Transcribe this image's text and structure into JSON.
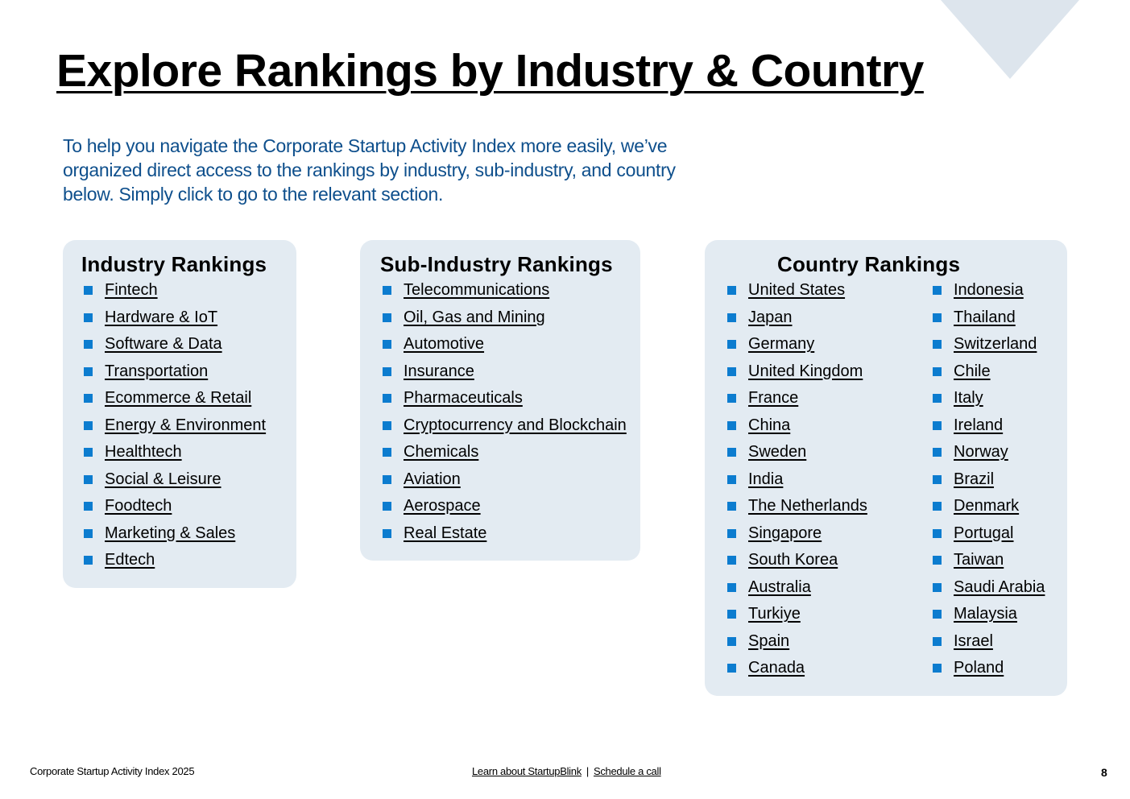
{
  "title": "Explore Rankings by Industry & Country",
  "intro": "To help you navigate the Corporate Startup Activity Index more easily, we’ve organized direct access to the rankings by industry, sub-industry, and country below. Simply click to go to the relevant section.",
  "industry": {
    "heading": "Industry Rankings",
    "items": [
      "Fintech",
      "Hardware & IoT",
      "Software & Data",
      "Transportation",
      "Ecommerce & Retail",
      "Energy & Environment",
      "Healthtech",
      "Social & Leisure",
      "Foodtech",
      "Marketing & Sales",
      "Edtech"
    ]
  },
  "subindustry": {
    "heading": "Sub-Industry Rankings",
    "items": [
      "Telecommunications",
      "Oil, Gas and Mining",
      "Automotive",
      "Insurance",
      "Pharmaceuticals",
      "Cryptocurrency and Blockchain",
      "Chemicals",
      "Aviation",
      "Aerospace",
      "Real Estate"
    ]
  },
  "country": {
    "heading": "Country Rankings",
    "col_a": [
      "United States",
      "Japan",
      "Germany",
      "United Kingdom",
      "France",
      "China",
      "Sweden",
      "India",
      "The Netherlands",
      "Singapore",
      "South Korea",
      "Australia",
      "Turkiye",
      "Spain",
      "Canada"
    ],
    "col_b": [
      "Indonesia",
      "Thailand",
      "Switzerland",
      "Chile",
      "Italy",
      "Ireland",
      "Norway",
      "Brazil",
      "Denmark",
      "Portugal",
      "Taiwan",
      "Saudi Arabia",
      "Malaysia",
      "Israel",
      "Poland"
    ]
  },
  "footer": {
    "doc_name": "Corporate Startup Activity Index 2025",
    "learn_link": "Learn about StartupBlink",
    "separator": "|",
    "schedule_link": "Schedule a call",
    "page_number": "8"
  },
  "colors": {
    "accent_blue": "#0c7ccf",
    "intro_text": "#0e4f8c",
    "card_bg": "#e3ebf2"
  }
}
